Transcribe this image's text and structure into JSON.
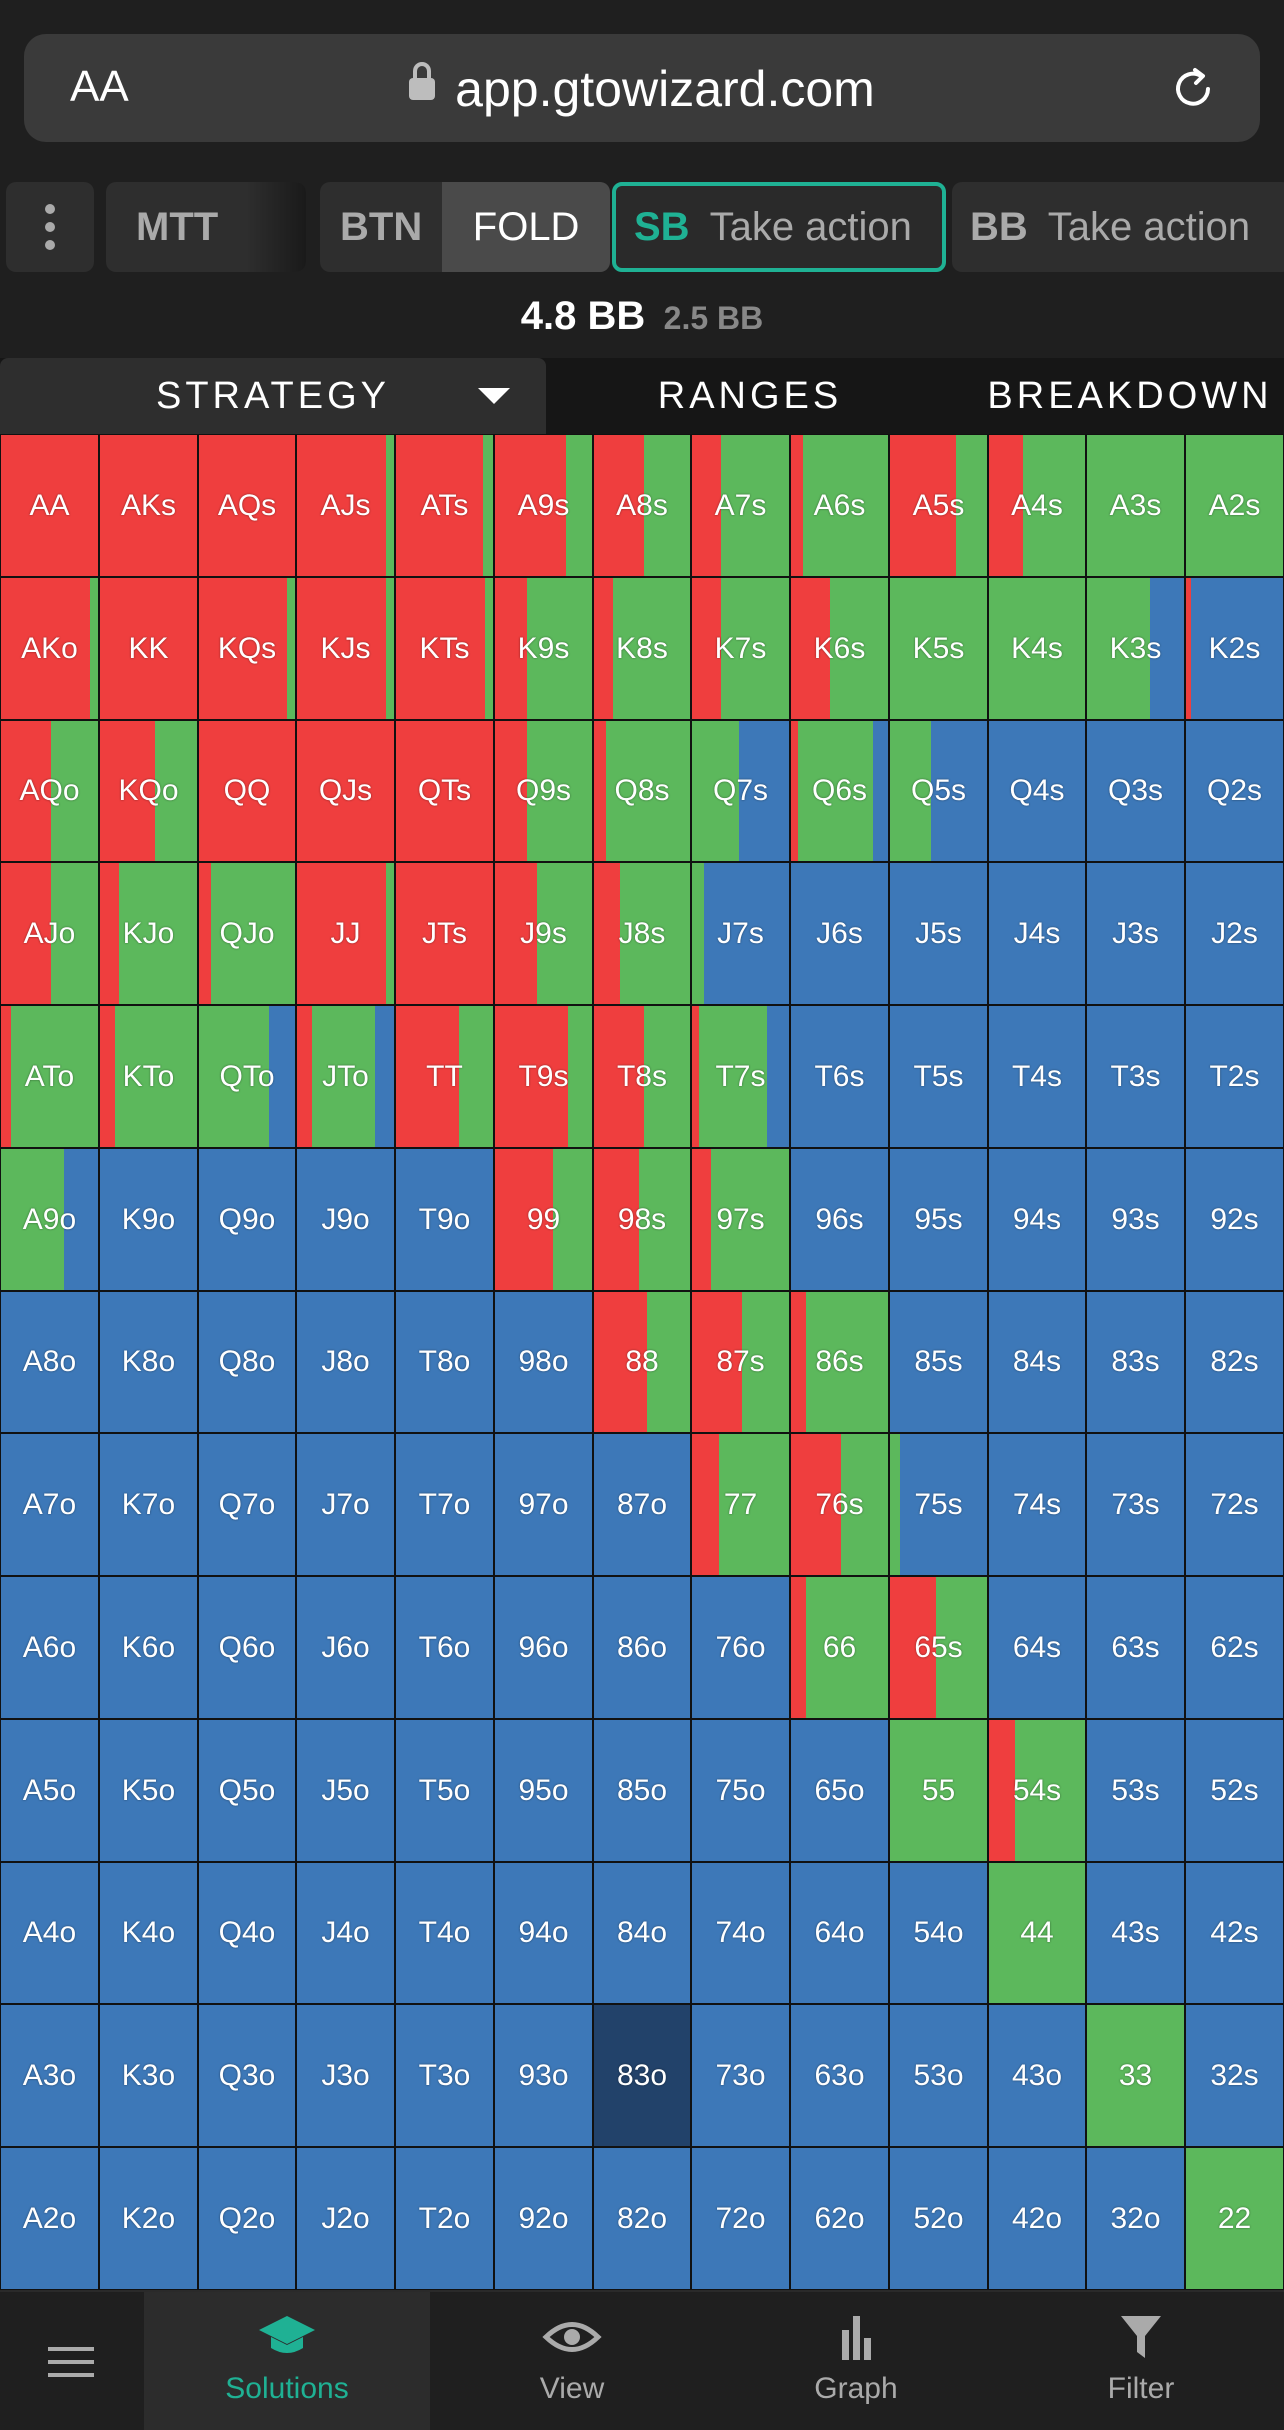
{
  "browser": {
    "aa_label": "AA",
    "url": "app.gtowizard.com"
  },
  "toolbar": {
    "mtt_label": "MTT",
    "btn_position": "BTN",
    "btn_action": "FOLD",
    "sb_position": "SB",
    "sb_action": "Take action",
    "bb_position": "BB",
    "bb_action": "Take action"
  },
  "stack": {
    "main": "4.8 BB",
    "sub": "2.5 BB"
  },
  "tabs": {
    "strategy": "STRATEGY",
    "ranges": "RANGES",
    "breakdown": "BREAKDOWN"
  },
  "colors": {
    "raise": "#ef3e3e",
    "call": "#5cb85c",
    "fold": "#3d78b8",
    "selected": "#22426a",
    "accent": "#1fb194"
  },
  "grid": {
    "ranks": [
      "A",
      "K",
      "Q",
      "J",
      "T",
      "9",
      "8",
      "7",
      "6",
      "5",
      "4",
      "3",
      "2"
    ],
    "selected_hand": "83o",
    "legend_order": [
      "raise",
      "call",
      "fold"
    ],
    "mix": [
      [
        [
          1,
          0,
          0
        ],
        [
          1,
          0,
          0
        ],
        [
          1,
          0,
          0
        ],
        [
          0.92,
          0.08,
          0
        ],
        [
          0.9,
          0.1,
          0
        ],
        [
          0.73,
          0.27,
          0
        ],
        [
          0.52,
          0.48,
          0
        ],
        [
          0.3,
          0.7,
          0
        ],
        [
          0.12,
          0.88,
          0
        ],
        [
          0.68,
          0.32,
          0
        ],
        [
          0.35,
          0.65,
          0
        ],
        [
          0,
          1,
          0
        ],
        [
          0,
          1,
          0
        ]
      ],
      [
        [
          0.92,
          0.08,
          0
        ],
        [
          1,
          0,
          0
        ],
        [
          0.92,
          0.08,
          0
        ],
        [
          0.92,
          0.08,
          0
        ],
        [
          0.92,
          0.08,
          0
        ],
        [
          0.33,
          0.67,
          0
        ],
        [
          0.2,
          0.8,
          0
        ],
        [
          0.3,
          0.7,
          0
        ],
        [
          0.4,
          0.6,
          0
        ],
        [
          0,
          1,
          0
        ],
        [
          0,
          1,
          0
        ],
        [
          0,
          0.65,
          0.35
        ],
        [
          0.05,
          0,
          0.95
        ]
      ],
      [
        [
          0.52,
          0.48,
          0
        ],
        [
          0.57,
          0.43,
          0
        ],
        [
          1,
          0,
          0
        ],
        [
          1,
          0,
          0
        ],
        [
          1,
          0,
          0
        ],
        [
          0.33,
          0.67,
          0
        ],
        [
          0.13,
          0.87,
          0
        ],
        [
          0,
          0.48,
          0.52
        ],
        [
          0.07,
          0.78,
          0.15
        ],
        [
          0,
          0.42,
          0.58
        ],
        [
          0,
          0,
          1
        ],
        [
          0,
          0,
          1
        ],
        [
          0,
          0,
          1
        ]
      ],
      [
        [
          0.52,
          0.48,
          0
        ],
        [
          0.2,
          0.8,
          0
        ],
        [
          0.12,
          0.88,
          0
        ],
        [
          0.92,
          0.08,
          0
        ],
        [
          1,
          0,
          0
        ],
        [
          0.43,
          0.57,
          0
        ],
        [
          0.27,
          0.73,
          0
        ],
        [
          0,
          0.12,
          0.88
        ],
        [
          0,
          0,
          1
        ],
        [
          0,
          0,
          1
        ],
        [
          0,
          0,
          1
        ],
        [
          0,
          0,
          1
        ],
        [
          0,
          0,
          1
        ]
      ],
      [
        [
          0.1,
          0.9,
          0
        ],
        [
          0.15,
          0.85,
          0
        ],
        [
          0,
          0.73,
          0.27
        ],
        [
          0.15,
          0.65,
          0.2
        ],
        [
          0.65,
          0.35,
          0
        ],
        [
          0.75,
          0.25,
          0
        ],
        [
          0.52,
          0.48,
          0
        ],
        [
          0.07,
          0.7,
          0.23
        ],
        [
          0,
          0,
          1
        ],
        [
          0,
          0,
          1
        ],
        [
          0,
          0,
          1
        ],
        [
          0,
          0,
          1
        ],
        [
          0,
          0,
          1
        ]
      ],
      [
        [
          0,
          0.65,
          0.35
        ],
        [
          0,
          0,
          1
        ],
        [
          0,
          0,
          1
        ],
        [
          0,
          0,
          1
        ],
        [
          0,
          0,
          1
        ],
        [
          0.6,
          0.4,
          0
        ],
        [
          0.47,
          0.53,
          0
        ],
        [
          0.2,
          0.8,
          0
        ],
        [
          0,
          0,
          1
        ],
        [
          0,
          0,
          1
        ],
        [
          0,
          0,
          1
        ],
        [
          0,
          0,
          1
        ],
        [
          0,
          0,
          1
        ]
      ],
      [
        [
          0,
          0,
          1
        ],
        [
          0,
          0,
          1
        ],
        [
          0,
          0,
          1
        ],
        [
          0,
          0,
          1
        ],
        [
          0,
          0,
          1
        ],
        [
          0,
          0,
          1
        ],
        [
          0.55,
          0.45,
          0
        ],
        [
          0.52,
          0.48,
          0
        ],
        [
          0.15,
          0.85,
          0
        ],
        [
          0,
          0,
          1
        ],
        [
          0,
          0,
          1
        ],
        [
          0,
          0,
          1
        ],
        [
          0,
          0,
          1
        ]
      ],
      [
        [
          0,
          0,
          1
        ],
        [
          0,
          0,
          1
        ],
        [
          0,
          0,
          1
        ],
        [
          0,
          0,
          1
        ],
        [
          0,
          0,
          1
        ],
        [
          0,
          0,
          1
        ],
        [
          0,
          0,
          1
        ],
        [
          0.28,
          0.72,
          0
        ],
        [
          0.52,
          0.48,
          0.0
        ],
        [
          0,
          0.1,
          0.9
        ],
        [
          0,
          0,
          1
        ],
        [
          0,
          0,
          1
        ],
        [
          0,
          0,
          1
        ]
      ],
      [
        [
          0,
          0,
          1
        ],
        [
          0,
          0,
          1
        ],
        [
          0,
          0,
          1
        ],
        [
          0,
          0,
          1
        ],
        [
          0,
          0,
          1
        ],
        [
          0,
          0,
          1
        ],
        [
          0,
          0,
          1
        ],
        [
          0,
          0,
          1
        ],
        [
          0.15,
          0.85,
          0
        ],
        [
          0.47,
          0.53,
          0
        ],
        [
          0,
          0,
          1
        ],
        [
          0,
          0,
          1
        ],
        [
          0,
          0,
          1
        ]
      ],
      [
        [
          0,
          0,
          1
        ],
        [
          0,
          0,
          1
        ],
        [
          0,
          0,
          1
        ],
        [
          0,
          0,
          1
        ],
        [
          0,
          0,
          1
        ],
        [
          0,
          0,
          1
        ],
        [
          0,
          0,
          1
        ],
        [
          0,
          0,
          1
        ],
        [
          0,
          0,
          1
        ],
        [
          0,
          1,
          0
        ],
        [
          0.27,
          0.73,
          0
        ],
        [
          0,
          0,
          1
        ],
        [
          0,
          0,
          1
        ]
      ],
      [
        [
          0,
          0,
          1
        ],
        [
          0,
          0,
          1
        ],
        [
          0,
          0,
          1
        ],
        [
          0,
          0,
          1
        ],
        [
          0,
          0,
          1
        ],
        [
          0,
          0,
          1
        ],
        [
          0,
          0,
          1
        ],
        [
          0,
          0,
          1
        ],
        [
          0,
          0,
          1
        ],
        [
          0,
          0,
          1
        ],
        [
          0,
          1,
          0
        ],
        [
          0,
          0,
          1
        ],
        [
          0,
          0,
          1
        ]
      ],
      [
        [
          0,
          0,
          1
        ],
        [
          0,
          0,
          1
        ],
        [
          0,
          0,
          1
        ],
        [
          0,
          0,
          1
        ],
        [
          0,
          0,
          1
        ],
        [
          0,
          0,
          1
        ],
        [
          0,
          0,
          1
        ],
        [
          0,
          0,
          1
        ],
        [
          0,
          0,
          1
        ],
        [
          0,
          0,
          1
        ],
        [
          0,
          0,
          1
        ],
        [
          0,
          1,
          0
        ],
        [
          0,
          0,
          1
        ]
      ],
      [
        [
          0,
          0,
          1
        ],
        [
          0,
          0,
          1
        ],
        [
          0,
          0,
          1
        ],
        [
          0,
          0,
          1
        ],
        [
          0,
          0,
          1
        ],
        [
          0,
          0,
          1
        ],
        [
          0,
          0,
          1
        ],
        [
          0,
          0,
          1
        ],
        [
          0,
          0,
          1
        ],
        [
          0,
          0,
          1
        ],
        [
          0,
          0,
          1
        ],
        [
          0,
          0,
          1
        ],
        [
          0,
          1,
          0
        ]
      ]
    ]
  },
  "nav": {
    "solutions": "Solutions",
    "view": "View",
    "graph": "Graph",
    "filter": "Filter"
  }
}
